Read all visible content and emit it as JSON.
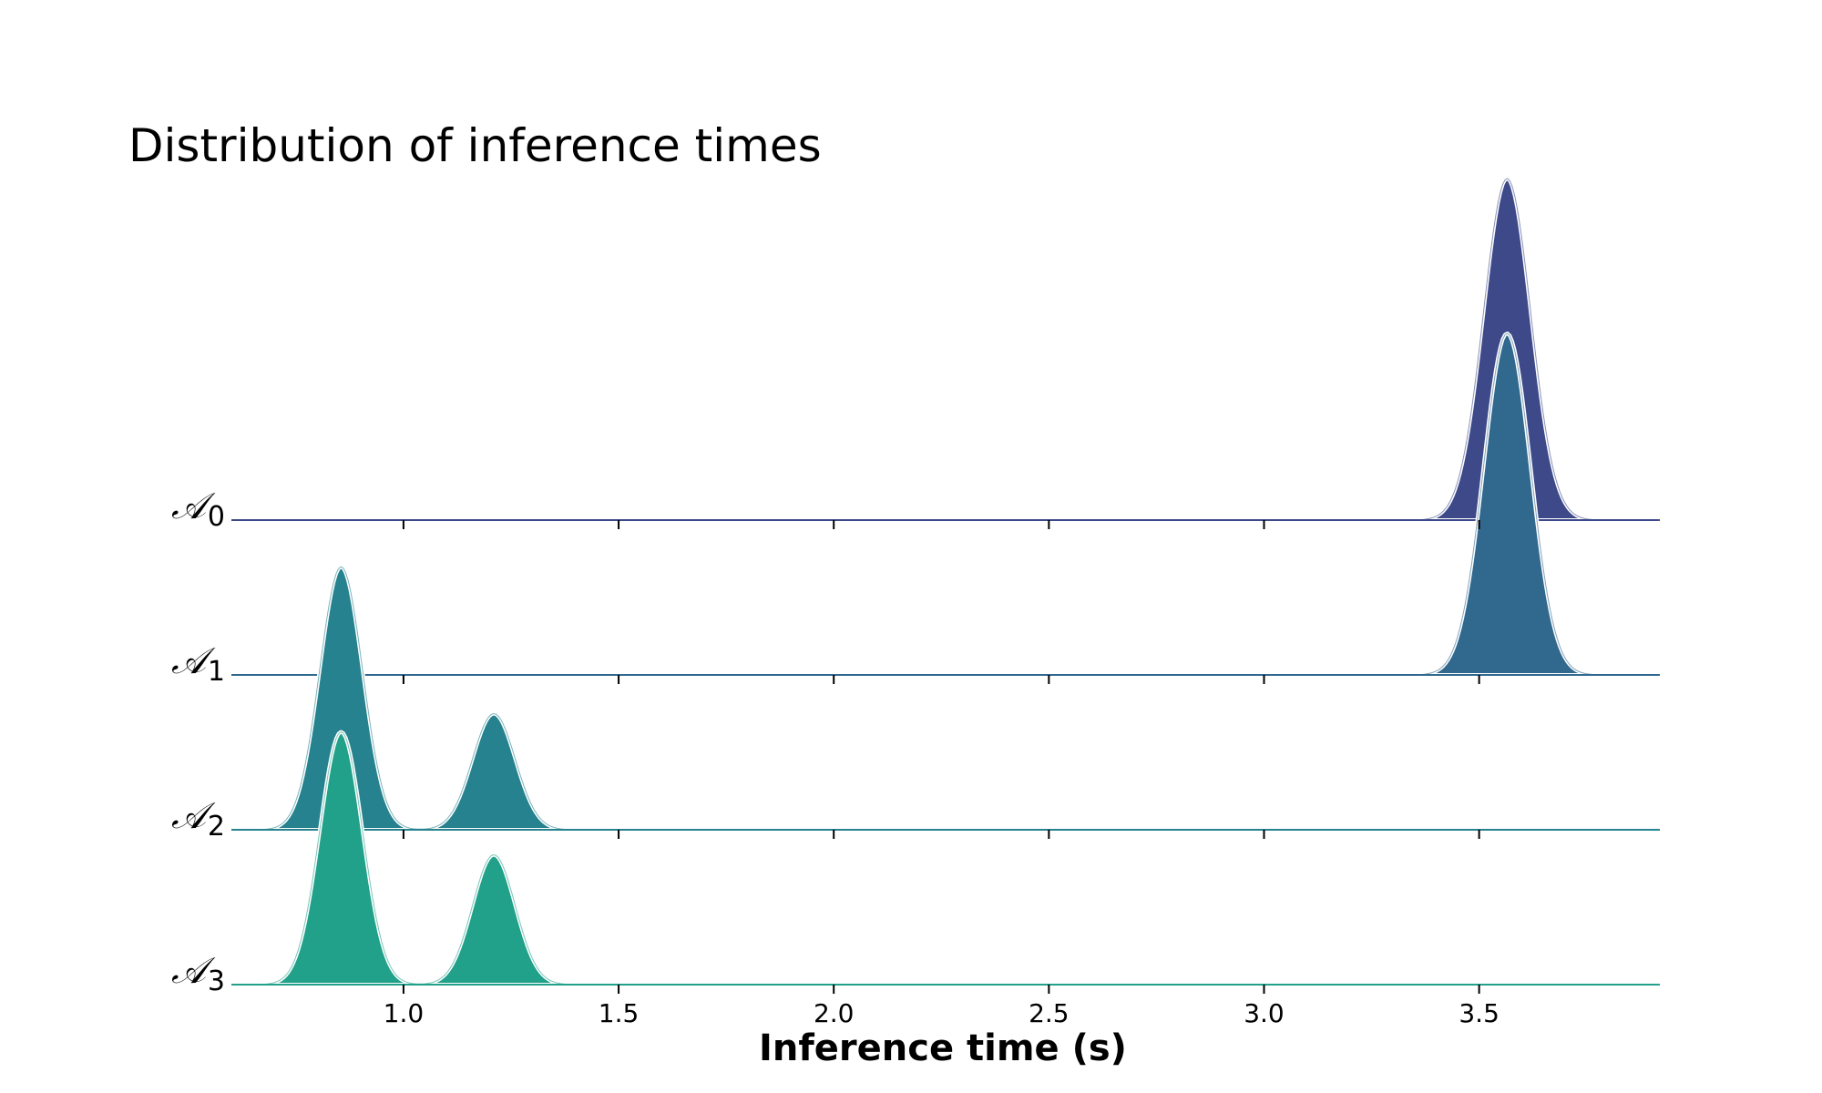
{
  "chart_data": {
    "type": "area",
    "title": "Distribution of inference times",
    "xlabel": "Inference time (s)",
    "ylabel": "",
    "xlim": [
      0.6,
      3.92
    ],
    "xticks": [
      "1.0",
      "1.5",
      "2.0",
      "2.5",
      "3.0",
      "3.5"
    ],
    "xtick_values": [
      1.0,
      1.5,
      2.0,
      2.5,
      3.0,
      3.5
    ],
    "plot_style": "ridgeline",
    "grid": false,
    "series": [
      {
        "name": "A0",
        "label_main": "𝒜",
        "label_sub": "0",
        "color": "#3e4989",
        "peaks": [
          {
            "mean": 3.565,
            "sd": 0.055,
            "height": 1.0
          }
        ]
      },
      {
        "name": "A1",
        "label_main": "𝒜",
        "label_sub": "1",
        "color": "#31688e",
        "peaks": [
          {
            "mean": 3.565,
            "sd": 0.055,
            "height": 1.0
          }
        ]
      },
      {
        "name": "A2",
        "label_main": "𝒜",
        "label_sub": "2",
        "color": "#26828e",
        "peaks": [
          {
            "mean": 0.855,
            "sd": 0.05,
            "height": 0.77
          },
          {
            "mean": 1.21,
            "sd": 0.05,
            "height": 0.34
          }
        ]
      },
      {
        "name": "A3",
        "label_main": "𝒜",
        "label_sub": "3",
        "color": "#21a08a",
        "peaks": [
          {
            "mean": 0.855,
            "sd": 0.05,
            "height": 0.74
          },
          {
            "mean": 1.21,
            "sd": 0.05,
            "height": 0.38
          }
        ]
      }
    ]
  }
}
